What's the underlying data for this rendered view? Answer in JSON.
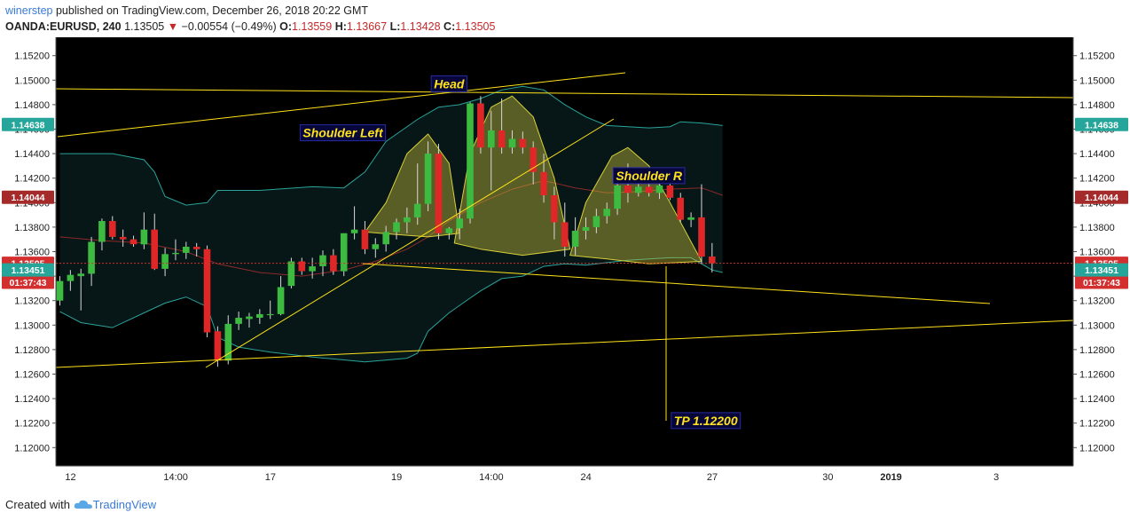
{
  "header": {
    "author": "winerstep",
    "published_text": "published on TradingView.com, December 26, 2018 20:22 GMT",
    "symbol": "OANDA:EURUSD, 240",
    "last": "1.13505",
    "change": "−0.00554 (−0.49%)",
    "o_label": "O:",
    "o_value": "1.13559",
    "h_label": "H:",
    "h_value": "1.13667",
    "l_label": "L:",
    "l_value": "1.13428",
    "c_label": "C:",
    "c_value": "1.13505"
  },
  "footer": {
    "created_with": "Created with",
    "brand": "TradingView"
  },
  "colors": {
    "background": "#000000",
    "up": "#3dbb41",
    "down": "#e02727",
    "trendline": "#ffe21a",
    "band": "#2aa39a",
    "basis": "#8a2a2a",
    "badge_last": "#d32f2f",
    "badge_teal": "#26a69a",
    "badge_mid": "#a52a2a"
  },
  "chart_data": {
    "type": "candlestick",
    "ylim": [
      1.1185,
      1.1535
    ],
    "y_ticks": [
      "1.12000",
      "1.12200",
      "1.12400",
      "1.12600",
      "1.12800",
      "1.13000",
      "1.13200",
      "1.13400",
      "1.13600",
      "1.13800",
      "1.14000",
      "1.14200",
      "1.14400",
      "1.14600",
      "1.14800",
      "1.15000",
      "1.15200"
    ],
    "x_ticks": [
      {
        "label": "12",
        "i": 0
      },
      {
        "label": "14:00",
        "i": 10
      },
      {
        "label": "17",
        "i": 19
      },
      {
        "label": "19",
        "i": 31
      },
      {
        "label": "14:00",
        "i": 40
      },
      {
        "label": "24",
        "i": 49
      },
      {
        "label": "27",
        "i": 61
      },
      {
        "label": "30",
        "i": 72
      },
      {
        "label": "2019",
        "i": 78
      },
      {
        "label": "3",
        "i": 88
      }
    ],
    "last_price": 1.13505,
    "price_badges": [
      {
        "value": "1.14638",
        "kind": "teal"
      },
      {
        "value": "1.14044",
        "kind": "mid"
      },
      {
        "value": "1.13505",
        "kind": "last"
      },
      {
        "value": "01:37:43",
        "at": 1.1335,
        "kind": "last"
      },
      {
        "value": "1.13451",
        "kind": "teal"
      }
    ],
    "annotations": [
      {
        "text": "Head",
        "x_i": 37.0,
        "y": 1.1497
      },
      {
        "text": "Shoulder Left",
        "x_i": 26.9,
        "y": 1.1457
      },
      {
        "text": "Shoulder R",
        "x_i": 56.0,
        "y": 1.1422
      },
      {
        "text": "TP 1.12200",
        "x_i": 61.4,
        "y": 1.1222
      }
    ],
    "candles": [
      {
        "o": 1.132,
        "h": 1.134,
        "l": 1.1316,
        "c": 1.1336
      },
      {
        "o": 1.1336,
        "h": 1.1345,
        "l": 1.1328,
        "c": 1.1341
      },
      {
        "o": 1.134,
        "h": 1.1346,
        "l": 1.1312,
        "c": 1.1342
      },
      {
        "o": 1.1342,
        "h": 1.1372,
        "l": 1.1332,
        "c": 1.1368
      },
      {
        "o": 1.1368,
        "h": 1.1387,
        "l": 1.1361,
        "c": 1.1385
      },
      {
        "o": 1.1385,
        "h": 1.1389,
        "l": 1.137,
        "c": 1.1372
      },
      {
        "o": 1.1372,
        "h": 1.1378,
        "l": 1.1364,
        "c": 1.137
      },
      {
        "o": 1.137,
        "h": 1.1373,
        "l": 1.1364,
        "c": 1.1366
      },
      {
        "o": 1.1366,
        "h": 1.1392,
        "l": 1.1362,
        "c": 1.1378
      },
      {
        "o": 1.1378,
        "h": 1.1391,
        "l": 1.1345,
        "c": 1.1346
      },
      {
        "o": 1.1346,
        "h": 1.1363,
        "l": 1.134,
        "c": 1.1358
      },
      {
        "o": 1.1358,
        "h": 1.137,
        "l": 1.1353,
        "c": 1.1359
      },
      {
        "o": 1.1359,
        "h": 1.1368,
        "l": 1.1354,
        "c": 1.1364
      },
      {
        "o": 1.1364,
        "h": 1.1367,
        "l": 1.1356,
        "c": 1.1362
      },
      {
        "o": 1.1362,
        "h": 1.1365,
        "l": 1.129,
        "c": 1.1294
      },
      {
        "o": 1.1295,
        "h": 1.1299,
        "l": 1.1266,
        "c": 1.1271
      },
      {
        "o": 1.1271,
        "h": 1.1308,
        "l": 1.1268,
        "c": 1.1301
      },
      {
        "o": 1.1301,
        "h": 1.1311,
        "l": 1.1296,
        "c": 1.1306
      },
      {
        "o": 1.1305,
        "h": 1.131,
        "l": 1.1298,
        "c": 1.1307
      },
      {
        "o": 1.1306,
        "h": 1.1313,
        "l": 1.1301,
        "c": 1.1309
      },
      {
        "o": 1.1309,
        "h": 1.132,
        "l": 1.1305,
        "c": 1.1309
      },
      {
        "o": 1.1309,
        "h": 1.134,
        "l": 1.1308,
        "c": 1.1331
      },
      {
        "o": 1.1332,
        "h": 1.1355,
        "l": 1.133,
        "c": 1.1352
      },
      {
        "o": 1.1352,
        "h": 1.1355,
        "l": 1.1341,
        "c": 1.1344
      },
      {
        "o": 1.1344,
        "h": 1.1355,
        "l": 1.1338,
        "c": 1.1348
      },
      {
        "o": 1.1348,
        "h": 1.1361,
        "l": 1.134,
        "c": 1.1357
      },
      {
        "o": 1.1357,
        "h": 1.1362,
        "l": 1.1341,
        "c": 1.1344
      },
      {
        "o": 1.1344,
        "h": 1.1375,
        "l": 1.134,
        "c": 1.1375
      },
      {
        "o": 1.1375,
        "h": 1.1397,
        "l": 1.137,
        "c": 1.1378
      },
      {
        "o": 1.1378,
        "h": 1.1385,
        "l": 1.1358,
        "c": 1.1362
      },
      {
        "o": 1.1362,
        "h": 1.1371,
        "l": 1.1355,
        "c": 1.1366
      },
      {
        "o": 1.1366,
        "h": 1.1381,
        "l": 1.136,
        "c": 1.1376
      },
      {
        "o": 1.1376,
        "h": 1.1387,
        "l": 1.137,
        "c": 1.1384
      },
      {
        "o": 1.1384,
        "h": 1.1396,
        "l": 1.1375,
        "c": 1.1388
      },
      {
        "o": 1.1388,
        "h": 1.1432,
        "l": 1.1382,
        "c": 1.1399
      },
      {
        "o": 1.1399,
        "h": 1.145,
        "l": 1.1393,
        "c": 1.144
      },
      {
        "o": 1.144,
        "h": 1.1448,
        "l": 1.137,
        "c": 1.1375
      },
      {
        "o": 1.1375,
        "h": 1.138,
        "l": 1.137,
        "c": 1.1379
      },
      {
        "o": 1.1379,
        "h": 1.1395,
        "l": 1.137,
        "c": 1.1387
      },
      {
        "o": 1.1387,
        "h": 1.1482,
        "l": 1.1383,
        "c": 1.1481
      },
      {
        "o": 1.1481,
        "h": 1.1487,
        "l": 1.144,
        "c": 1.1445
      },
      {
        "o": 1.1445,
        "h": 1.1475,
        "l": 1.141,
        "c": 1.1459
      },
      {
        "o": 1.1459,
        "h": 1.1485,
        "l": 1.144,
        "c": 1.1445
      },
      {
        "o": 1.1445,
        "h": 1.1459,
        "l": 1.144,
        "c": 1.1452
      },
      {
        "o": 1.1452,
        "h": 1.1458,
        "l": 1.144,
        "c": 1.1445
      },
      {
        "o": 1.1445,
        "h": 1.145,
        "l": 1.1415,
        "c": 1.1425
      },
      {
        "o": 1.1425,
        "h": 1.144,
        "l": 1.14,
        "c": 1.1406
      },
      {
        "o": 1.1406,
        "h": 1.1413,
        "l": 1.137,
        "c": 1.1384
      },
      {
        "o": 1.1384,
        "h": 1.14,
        "l": 1.1356,
        "c": 1.1364
      },
      {
        "o": 1.1364,
        "h": 1.1388,
        "l": 1.1357,
        "c": 1.1377
      },
      {
        "o": 1.1377,
        "h": 1.1388,
        "l": 1.137,
        "c": 1.138
      },
      {
        "o": 1.138,
        "h": 1.1395,
        "l": 1.1375,
        "c": 1.1389
      },
      {
        "o": 1.1389,
        "h": 1.14,
        "l": 1.1383,
        "c": 1.1395
      },
      {
        "o": 1.1395,
        "h": 1.1418,
        "l": 1.139,
        "c": 1.1414
      },
      {
        "o": 1.1414,
        "h": 1.1432,
        "l": 1.14,
        "c": 1.1408
      },
      {
        "o": 1.1408,
        "h": 1.1418,
        "l": 1.1405,
        "c": 1.1413
      },
      {
        "o": 1.1413,
        "h": 1.142,
        "l": 1.1405,
        "c": 1.1408
      },
      {
        "o": 1.1408,
        "h": 1.1418,
        "l": 1.1403,
        "c": 1.1414
      },
      {
        "o": 1.1414,
        "h": 1.142,
        "l": 1.1402,
        "c": 1.1404
      },
      {
        "o": 1.1404,
        "h": 1.1408,
        "l": 1.1384,
        "c": 1.1386
      },
      {
        "o": 1.1386,
        "h": 1.1392,
        "l": 1.138,
        "c": 1.1388
      },
      {
        "o": 1.1388,
        "h": 1.1415,
        "l": 1.135,
        "c": 1.1356
      },
      {
        "o": 1.1356,
        "h": 1.1367,
        "l": 1.1343,
        "c": 1.13505
      }
    ]
  }
}
